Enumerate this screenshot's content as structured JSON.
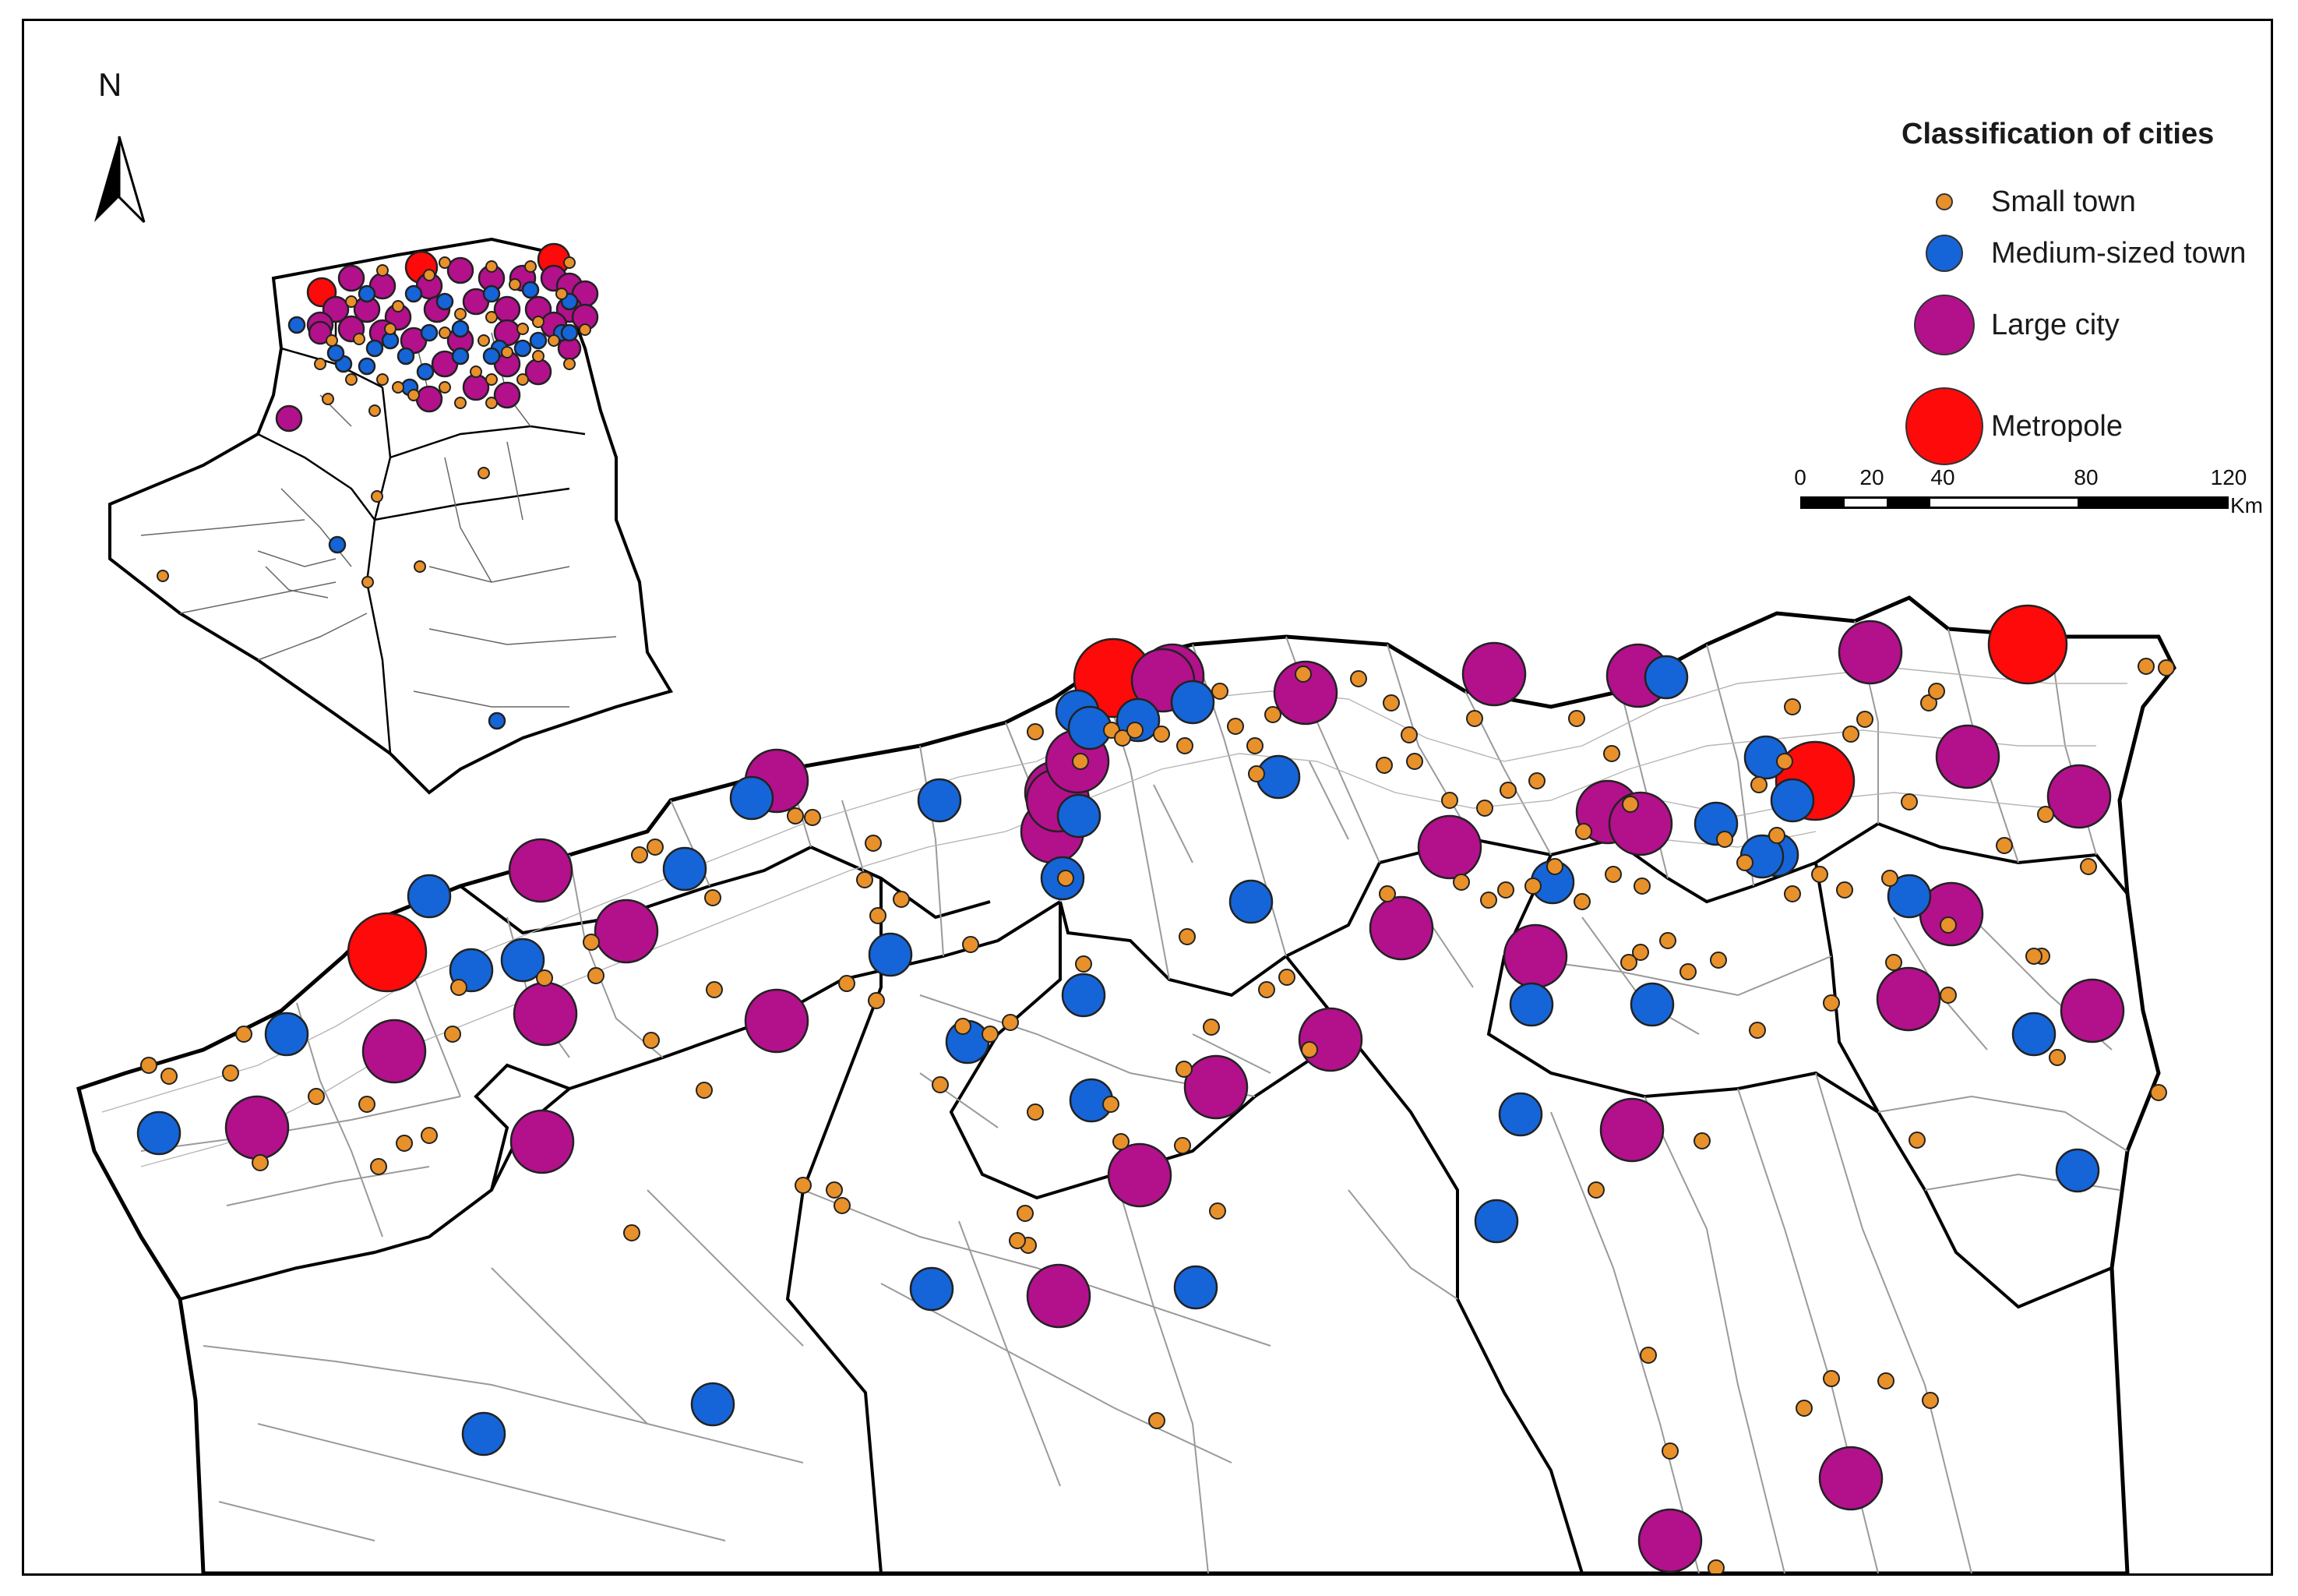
{
  "north_label": "N",
  "legend": {
    "title": "Classification of cities",
    "items": [
      {
        "label": "Small town",
        "color": "#e8912a",
        "size": 22
      },
      {
        "label": "Medium-sized town",
        "color": "#1565d8",
        "size": 48
      },
      {
        "label": "Large city",
        "color": "#b3108c",
        "size": 78
      },
      {
        "label": "Metropole",
        "color": "#ff0a0a",
        "size": 100
      }
    ]
  },
  "scale": {
    "ticks": [
      "0",
      "20",
      "40",
      "80",
      "120"
    ],
    "unit": "Km"
  },
  "colors": {
    "small": "#e8912a",
    "medium": "#1565d8",
    "large": "#b3108c",
    "metropole": "#ff0a0a"
  }
}
